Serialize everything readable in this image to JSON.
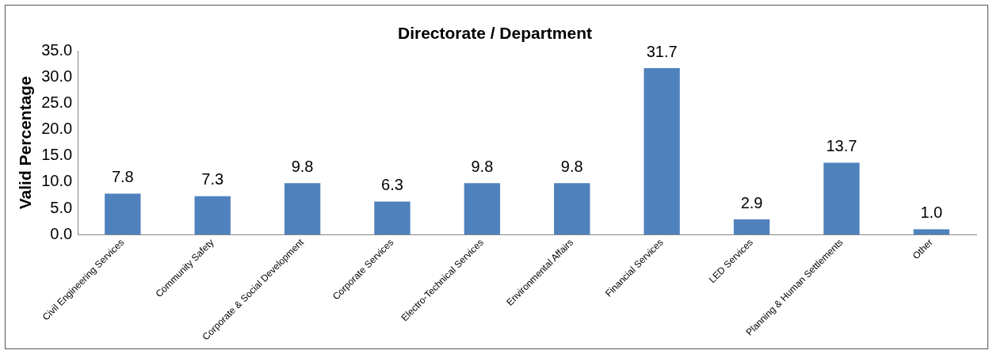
{
  "chart_data": {
    "type": "bar",
    "title": "Directorate / Department",
    "ylabel": "Valid Percentage",
    "categories": [
      "Civil Engineering Services",
      "Community Safety",
      "Corporate & Social Development",
      "Corporate Services",
      "Electro-Technical Services",
      "Environmental Affairs",
      "Financial Services",
      "LED Services",
      "Planning & Human Settlements",
      "Other"
    ],
    "values": [
      7.8,
      7.3,
      9.8,
      6.3,
      9.8,
      9.8,
      31.7,
      2.9,
      13.7,
      1.0
    ],
    "value_labels": [
      "7.8",
      "7.3",
      "9.8",
      "6.3",
      "9.8",
      "9.8",
      "31.7",
      "2.9",
      "13.7",
      "1.0"
    ],
    "color": "#4f81bd",
    "ylim": [
      0,
      35
    ],
    "yticks": [
      {
        "value": 0,
        "label": "0.0"
      },
      {
        "value": 5,
        "label": "5.0"
      },
      {
        "value": 10,
        "label": "10.0"
      },
      {
        "value": 15,
        "label": "15.0"
      },
      {
        "value": 20,
        "label": "20.0"
      },
      {
        "value": 25,
        "label": "25.0"
      },
      {
        "value": 30,
        "label": "30.0"
      },
      {
        "value": 35,
        "label": "35.0"
      }
    ],
    "grid": false,
    "legend": false
  }
}
